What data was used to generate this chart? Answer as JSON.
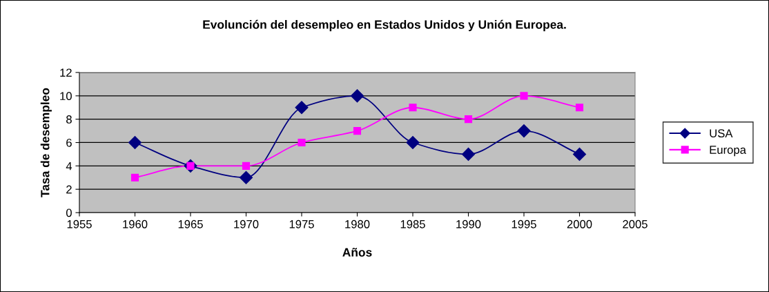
{
  "chart_data": {
    "type": "line",
    "title": "Evolunción del desempleo en Estados Unidos y Unión Europea.",
    "xlabel": "Años",
    "ylabel": "Tasa de desempleo",
    "x": [
      1960,
      1965,
      1970,
      1975,
      1980,
      1985,
      1990,
      1995,
      2000
    ],
    "series": [
      {
        "name": "USA",
        "color": "#000080",
        "marker": "diamond",
        "values": [
          6,
          4,
          3,
          9,
          10,
          6,
          5,
          7,
          5
        ]
      },
      {
        "name": "Europa",
        "color": "#ff00ff",
        "marker": "square",
        "values": [
          3,
          4,
          4,
          6,
          7,
          9,
          8,
          10,
          9
        ]
      }
    ],
    "xlim": [
      1955,
      2005
    ],
    "xticks": [
      1955,
      1960,
      1965,
      1970,
      1975,
      1980,
      1985,
      1990,
      1995,
      2000,
      2005
    ],
    "ylim": [
      0,
      12
    ],
    "yticks": [
      0,
      2,
      4,
      6,
      8,
      10,
      12
    ],
    "grid": "y",
    "legend": "right",
    "line_style": "solid"
  }
}
